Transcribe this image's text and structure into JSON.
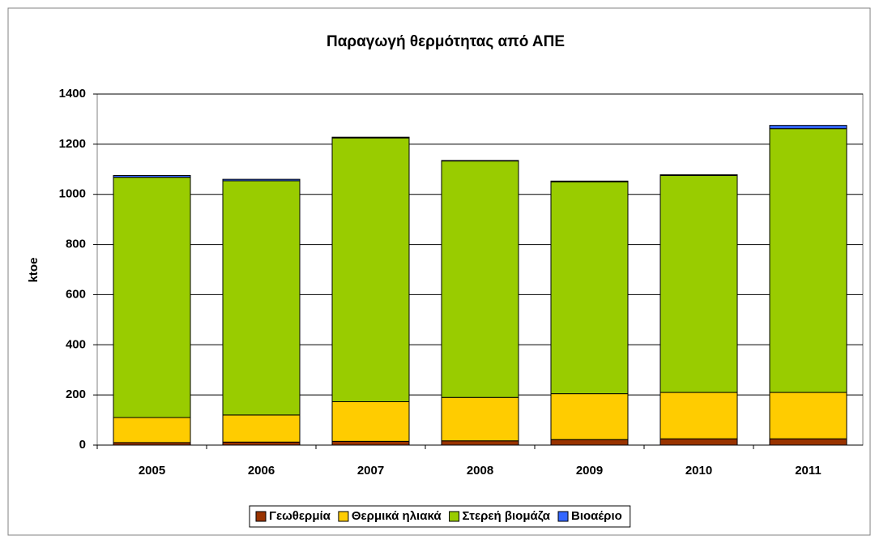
{
  "chart_data": {
    "type": "bar",
    "stacked": true,
    "title": "Παραγωγή θερμότητας από ΑΠΕ",
    "y_label": "ktoe",
    "categories": [
      "2005",
      "2006",
      "2007",
      "2008",
      "2009",
      "2010",
      "2011"
    ],
    "series": [
      {
        "name": "Γεωθερμία",
        "color": "#993300",
        "values": [
          10,
          12,
          15,
          17,
          22,
          25,
          25
        ]
      },
      {
        "name": "Θερμικά ηλιακά",
        "color": "#ffcc00",
        "values": [
          100,
          108,
          158,
          173,
          183,
          185,
          185
        ]
      },
      {
        "name": "Στερεή βιομάζα",
        "color": "#99cc00",
        "values": [
          958,
          934,
          1052,
          943,
          845,
          865,
          1052
        ]
      },
      {
        "name": "Βιοαέριο",
        "color": "#3366ff",
        "values": [
          7,
          6,
          3,
          2,
          3,
          3,
          13
        ]
      }
    ],
    "ylim": [
      0,
      1400
    ],
    "yticks": [
      0,
      200,
      400,
      600,
      800,
      1000,
      1200,
      1400
    ],
    "grid": true,
    "legend": "bottom"
  }
}
